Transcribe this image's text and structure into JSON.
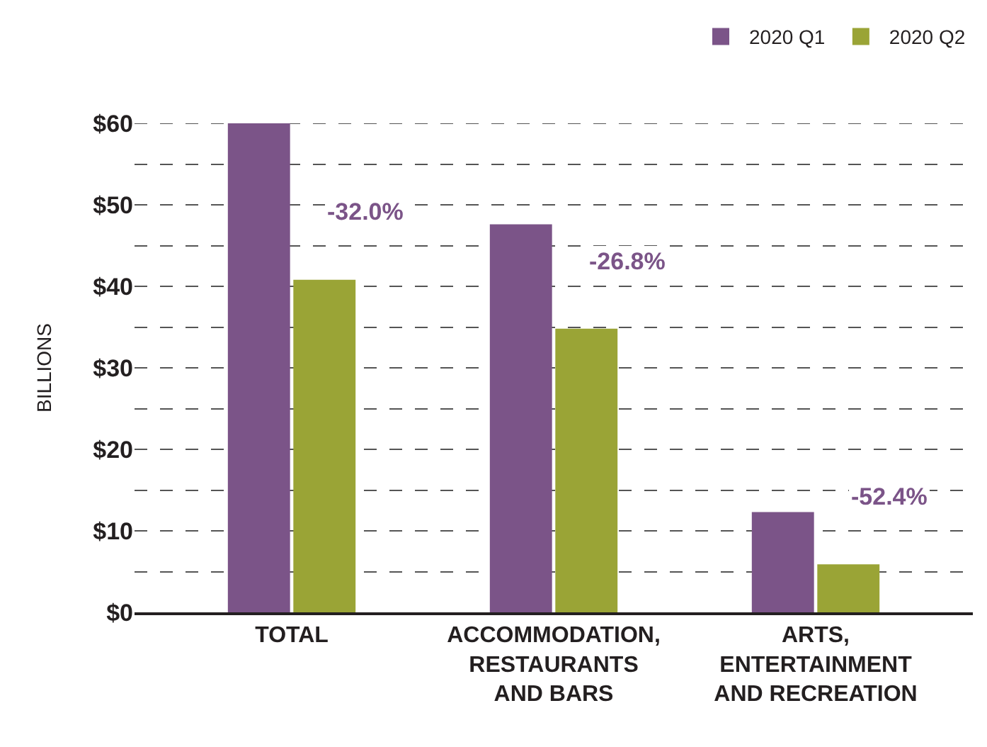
{
  "chart_data": {
    "type": "bar",
    "ylabel": "BILLIONS",
    "categories": [
      "TOTAL",
      "ACCOMMODATION, RESTAURANTS AND BARS",
      "ARTS, ENTERTAINMENT AND RECREATION"
    ],
    "series": [
      {
        "name": "2020 Q1",
        "color": "#7b5488",
        "values": [
          60,
          47.6,
          12.3
        ]
      },
      {
        "name": "2020 Q2",
        "color": "#9aa436",
        "values": [
          40.8,
          34.8,
          5.9
        ]
      }
    ],
    "ylim": [
      0,
      60
    ],
    "yticks": [
      {
        "value": 0,
        "label": "$0"
      },
      {
        "value": 5,
        "label": null
      },
      {
        "value": 10,
        "label": "$10"
      },
      {
        "value": 15,
        "label": null
      },
      {
        "value": 20,
        "label": "$20"
      },
      {
        "value": 25,
        "label": null
      },
      {
        "value": 30,
        "label": "$30"
      },
      {
        "value": 35,
        "label": null
      },
      {
        "value": 40,
        "label": "$40"
      },
      {
        "value": 45,
        "label": null
      },
      {
        "value": 50,
        "label": "$50"
      },
      {
        "value": 55,
        "label": null
      },
      {
        "value": 60,
        "label": "$60"
      }
    ],
    "annotations": [
      {
        "text": "-32.0%",
        "x": "TOTAL",
        "y": 40.8
      },
      {
        "text": "-26.8%",
        "x": "ACCOMMODATION, RESTAURANTS AND BARS",
        "y": 34.8
      },
      {
        "text": "-52.4%",
        "x": "ARTS, ENTERTAINMENT AND RECREATION",
        "y": 5.9
      }
    ],
    "grid": "y",
    "legend": "top right"
  }
}
